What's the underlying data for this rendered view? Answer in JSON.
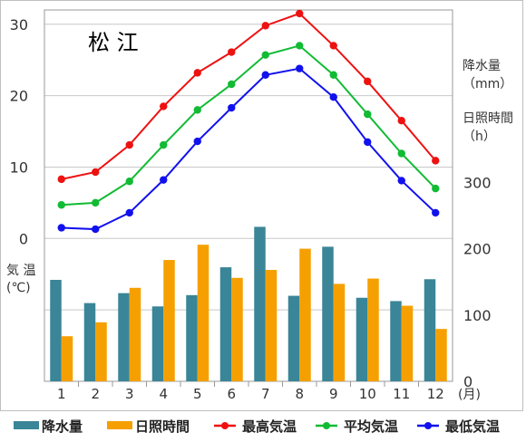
{
  "chart_data": {
    "type": "bar",
    "title": "松 江",
    "categories": [
      "1",
      "2",
      "3",
      "4",
      "5",
      "6",
      "7",
      "8",
      "9",
      "10",
      "11",
      "12"
    ],
    "x_unit": "(月)",
    "left_axis": {
      "label_lines": [
        "気 温",
        "(℃)"
      ],
      "ticks": [
        "0",
        "10",
        "20",
        "30"
      ],
      "range": [
        -20,
        32
      ]
    },
    "right_axis": {
      "labels": [
        {
          "lines": [
            "降水量",
            "（mm）"
          ]
        },
        {
          "lines": [
            "日照時間",
            "（h）"
          ]
        }
      ],
      "ticks": [
        "0",
        "100",
        "200",
        "300"
      ],
      "range": [
        0,
        300
      ]
    },
    "series": [
      {
        "name": "降水量",
        "kind": "bar",
        "axis": "right",
        "color": "#3a8597",
        "values": [
          153,
          118,
          133,
          113,
          130,
          172,
          233,
          129,
          203,
          126,
          121,
          154
        ]
      },
      {
        "name": "日照時間",
        "kind": "bar",
        "axis": "right",
        "color": "#f5a000",
        "values": [
          68,
          89,
          141,
          183,
          206,
          156,
          168,
          200,
          147,
          155,
          114,
          79
        ]
      },
      {
        "name": "最高気温",
        "kind": "line",
        "axis": "left",
        "color": "#ee1111",
        "values": [
          8.3,
          9.3,
          13.1,
          18.5,
          23.2,
          26.1,
          29.8,
          31.5,
          27.0,
          22.0,
          16.5,
          10.9
        ]
      },
      {
        "name": "平均気温",
        "kind": "line",
        "axis": "left",
        "color": "#11bb33",
        "values": [
          4.7,
          5.0,
          8.0,
          13.1,
          18.0,
          21.6,
          25.7,
          27.0,
          22.9,
          17.4,
          11.9,
          7.0
        ]
      },
      {
        "name": "最低気温",
        "kind": "line",
        "axis": "left",
        "color": "#1111ee",
        "values": [
          1.5,
          1.3,
          3.6,
          8.2,
          13.6,
          18.3,
          22.9,
          23.8,
          19.8,
          13.5,
          8.1,
          3.6
        ]
      }
    ]
  }
}
